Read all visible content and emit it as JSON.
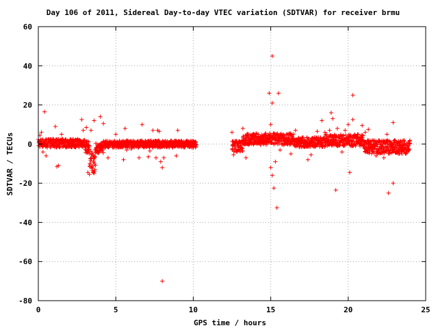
{
  "chart_data": {
    "type": "scatter",
    "title": "Day 106 of 2011, Sidereal Day-to-day VTEC variation (SDTVAR) for receiver brmu",
    "xlabel": "GPS time / hours",
    "ylabel": "SDTVAR / TECUs",
    "xlim": [
      0,
      25
    ],
    "ylim": [
      -80,
      60
    ],
    "x_ticks": [
      0,
      5,
      10,
      15,
      20,
      25
    ],
    "y_ticks": [
      -80,
      -60,
      -40,
      -20,
      0,
      20,
      40,
      60
    ],
    "grid": true,
    "marker": "plus",
    "marker_color": "#ff0000",
    "bands": [
      {
        "x_start": 0.0,
        "x_end": 3.0,
        "y_center": 0.5,
        "half_width": 2.2
      },
      {
        "x_start": 3.0,
        "x_end": 3.3,
        "y_center": -1.5,
        "half_width": 3.0
      },
      {
        "x_start": 3.3,
        "x_end": 3.7,
        "y_center": -9.0,
        "half_width": 6.0
      },
      {
        "x_start": 3.7,
        "x_end": 4.2,
        "y_center": -2.0,
        "half_width": 2.5
      },
      {
        "x_start": 4.2,
        "x_end": 10.2,
        "y_center": 0.0,
        "half_width": 1.8
      },
      {
        "x_start": 12.5,
        "x_end": 13.2,
        "y_center": -1.0,
        "half_width": 3.0
      },
      {
        "x_start": 13.2,
        "x_end": 16.5,
        "y_center": 2.5,
        "half_width": 3.0
      },
      {
        "x_start": 16.5,
        "x_end": 18.5,
        "y_center": 1.0,
        "half_width": 2.5
      },
      {
        "x_start": 18.5,
        "x_end": 21.0,
        "y_center": 2.0,
        "half_width": 3.0
      },
      {
        "x_start": 21.0,
        "x_end": 24.0,
        "y_center": -1.5,
        "half_width": 3.5
      }
    ],
    "points": [
      [
        0.1,
        4.5
      ],
      [
        0.2,
        6.0
      ],
      [
        0.3,
        -4.0
      ],
      [
        0.4,
        16.5
      ],
      [
        0.5,
        -6.0
      ],
      [
        1.1,
        9.0
      ],
      [
        1.2,
        -11.5
      ],
      [
        1.3,
        -11.0
      ],
      [
        1.5,
        5.0
      ],
      [
        2.8,
        12.5
      ],
      [
        2.9,
        7.0
      ],
      [
        3.1,
        8.5
      ],
      [
        3.2,
        -14.5
      ],
      [
        3.3,
        -15.5
      ],
      [
        3.4,
        7.0
      ],
      [
        3.6,
        12.0
      ],
      [
        4.0,
        14.0
      ],
      [
        4.2,
        10.5
      ],
      [
        4.5,
        -7.0
      ],
      [
        5.0,
        5.0
      ],
      [
        5.5,
        -8.0
      ],
      [
        5.6,
        8.0
      ],
      [
        5.7,
        -3.0
      ],
      [
        6.0,
        -2.5
      ],
      [
        6.5,
        -7.0
      ],
      [
        6.7,
        10.0
      ],
      [
        7.1,
        -6.5
      ],
      [
        7.2,
        -3.5
      ],
      [
        7.4,
        7.0
      ],
      [
        7.6,
        -7.0
      ],
      [
        7.7,
        7.0
      ],
      [
        7.8,
        6.5
      ],
      [
        7.9,
        -9.0
      ],
      [
        8.0,
        -12.0
      ],
      [
        8.1,
        -7.0
      ],
      [
        8.0,
        -70.0
      ],
      [
        8.9,
        -6.0
      ],
      [
        9.0,
        7.0
      ],
      [
        12.5,
        6.0
      ],
      [
        12.6,
        -5.5
      ],
      [
        12.9,
        -3.0
      ],
      [
        13.2,
        8.0
      ],
      [
        13.4,
        -7.0
      ],
      [
        14.9,
        26.0
      ],
      [
        15.0,
        10.0
      ],
      [
        15.0,
        -12.0
      ],
      [
        15.1,
        -16.0
      ],
      [
        15.1,
        21.0
      ],
      [
        15.1,
        45.0
      ],
      [
        15.2,
        -22.5
      ],
      [
        15.3,
        -9.0
      ],
      [
        15.4,
        -32.5
      ],
      [
        15.5,
        26.0
      ],
      [
        15.6,
        -3.0
      ],
      [
        16.3,
        -5.0
      ],
      [
        16.6,
        7.0
      ],
      [
        17.4,
        -8.0
      ],
      [
        17.6,
        -5.5
      ],
      [
        18.0,
        6.5
      ],
      [
        18.3,
        12.0
      ],
      [
        18.5,
        6.0
      ],
      [
        18.8,
        7.0
      ],
      [
        18.9,
        16.0
      ],
      [
        19.0,
        13.0
      ],
      [
        19.2,
        -23.5
      ],
      [
        19.3,
        8.0
      ],
      [
        19.6,
        -4.0
      ],
      [
        19.8,
        7.0
      ],
      [
        20.0,
        10.0
      ],
      [
        20.1,
        -14.5
      ],
      [
        20.3,
        12.5
      ],
      [
        20.3,
        25.0
      ],
      [
        20.5,
        3.0
      ],
      [
        20.9,
        9.5
      ],
      [
        21.1,
        6.0
      ],
      [
        21.3,
        7.5
      ],
      [
        21.4,
        -3.5
      ],
      [
        21.8,
        -6.0
      ],
      [
        22.3,
        -7.0
      ],
      [
        22.5,
        5.0
      ],
      [
        22.6,
        -25.0
      ],
      [
        22.9,
        -20.0
      ],
      [
        22.9,
        11.0
      ],
      [
        23.0,
        2.0
      ],
      [
        23.3,
        -5.0
      ],
      [
        23.6,
        -4.0
      ]
    ]
  }
}
